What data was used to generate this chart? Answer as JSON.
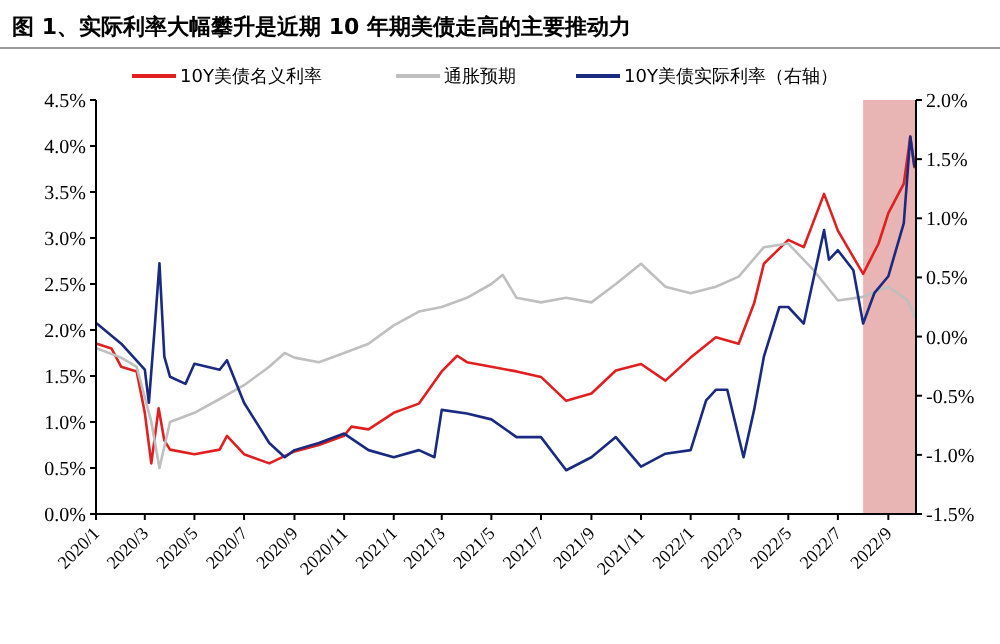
{
  "chart_data": {
    "type": "line",
    "title": "图 1、实际利率大幅攀升是近期 10 年期美债走高的主要推动力",
    "legend": "top",
    "grid": false,
    "line_style": "solid",
    "marker": "none",
    "xlim": [
      "2020-01-01",
      "2022-10-05"
    ],
    "xticks": [
      {
        "value": "2020-01",
        "label": "2020/1"
      },
      {
        "value": "2020-03",
        "label": "2020/3"
      },
      {
        "value": "2020-05",
        "label": "2020/5"
      },
      {
        "value": "2020-07",
        "label": "2020/7"
      },
      {
        "value": "2020-09",
        "label": "2020/9"
      },
      {
        "value": "2020-11",
        "label": "2020/11"
      },
      {
        "value": "2021-01",
        "label": "2021/1"
      },
      {
        "value": "2021-03",
        "label": "2021/3"
      },
      {
        "value": "2021-05",
        "label": "2021/5"
      },
      {
        "value": "2021-07",
        "label": "2021/7"
      },
      {
        "value": "2021-09",
        "label": "2021/9"
      },
      {
        "value": "2021-11",
        "label": "2021/11"
      },
      {
        "value": "2022-01",
        "label": "2022/1"
      },
      {
        "value": "2022-03",
        "label": "2022/3"
      },
      {
        "value": "2022-05",
        "label": "2022/5"
      },
      {
        "value": "2022-07",
        "label": "2022/7"
      },
      {
        "value": "2022-09",
        "label": "2022/9"
      }
    ],
    "ylim": [
      0,
      4.5
    ],
    "yticks": [
      {
        "value": 0,
        "label": "0.0%"
      },
      {
        "value": 0.5,
        "label": "0.5%"
      },
      {
        "value": 1,
        "label": "1.0%"
      },
      {
        "value": 1.5,
        "label": "1.5%"
      },
      {
        "value": 2,
        "label": "2.0%"
      },
      {
        "value": 2.5,
        "label": "2.5%"
      },
      {
        "value": 3,
        "label": "3.0%"
      },
      {
        "value": 3.5,
        "label": "3.5%"
      },
      {
        "value": 4,
        "label": "4.0%"
      },
      {
        "value": 4.5,
        "label": "4.5%"
      }
    ],
    "y2lim": [
      -1.5,
      2
    ],
    "y2ticks": [
      {
        "value": -1.5,
        "label": "-1.5%"
      },
      {
        "value": -1,
        "label": "-1.0%"
      },
      {
        "value": -0.5,
        "label": "-0.5%"
      },
      {
        "value": 0,
        "label": "0.0%"
      },
      {
        "value": 0.5,
        "label": "0.5%"
      },
      {
        "value": 1,
        "label": "1.0%"
      },
      {
        "value": 1.5,
        "label": "1.5%"
      },
      {
        "value": 2,
        "label": "2.0%"
      }
    ],
    "bands": [
      {
        "axis": "x",
        "from": "2022-08-01",
        "to": "2022-10-05",
        "color": "#e8b4b4"
      }
    ],
    "series": [
      {
        "name": "10Y美债名义利率",
        "color": "#e02020",
        "x": [
          "2020-01-02",
          "2020-01-20",
          "2020-02-01",
          "2020-02-20",
          "2020-03-01",
          "2020-03-09",
          "2020-03-18",
          "2020-03-25",
          "2020-04-01",
          "2020-05-01",
          "2020-06-01",
          "2020-06-10",
          "2020-07-01",
          "2020-08-01",
          "2020-09-01",
          "2020-10-01",
          "2020-11-01",
          "2020-11-10",
          "2020-12-01",
          "2021-01-01",
          "2021-02-01",
          "2021-03-01",
          "2021-03-20",
          "2021-04-01",
          "2021-05-01",
          "2021-06-01",
          "2021-07-01",
          "2021-08-01",
          "2021-09-01",
          "2021-10-01",
          "2021-11-01",
          "2021-12-01",
          "2022-01-01",
          "2022-02-01",
          "2022-03-01",
          "2022-03-20",
          "2022-04-01",
          "2022-05-01",
          "2022-05-20",
          "2022-06-14",
          "2022-07-01",
          "2022-08-01",
          "2022-08-20",
          "2022-09-01",
          "2022-09-20",
          "2022-09-28",
          "2022-10-03"
        ],
        "values": [
          1.85,
          1.8,
          1.6,
          1.55,
          1.1,
          0.55,
          1.15,
          0.8,
          0.7,
          0.65,
          0.7,
          0.85,
          0.65,
          0.55,
          0.68,
          0.75,
          0.85,
          0.95,
          0.92,
          1.1,
          1.2,
          1.55,
          1.72,
          1.65,
          1.6,
          1.55,
          1.49,
          1.23,
          1.31,
          1.56,
          1.63,
          1.45,
          1.7,
          1.92,
          1.85,
          2.29,
          2.72,
          2.98,
          2.9,
          3.48,
          3.08,
          2.61,
          2.94,
          3.27,
          3.59,
          4.1,
          3.77
        ]
      },
      {
        "name": "通胀预期",
        "color": "#bfbfbf",
        "x": [
          "2020-01-02",
          "2020-02-01",
          "2020-02-20",
          "2020-03-09",
          "2020-03-19",
          "2020-04-01",
          "2020-05-01",
          "2020-06-01",
          "2020-07-01",
          "2020-08-01",
          "2020-08-20",
          "2020-09-01",
          "2020-10-01",
          "2020-11-01",
          "2020-12-01",
          "2021-01-01",
          "2021-02-01",
          "2021-03-01",
          "2021-04-01",
          "2021-05-01",
          "2021-05-15",
          "2021-06-01",
          "2021-07-01",
          "2021-08-01",
          "2021-09-01",
          "2021-10-01",
          "2021-11-01",
          "2021-12-01",
          "2022-01-01",
          "2022-02-01",
          "2022-03-01",
          "2022-04-01",
          "2022-05-01",
          "2022-06-01",
          "2022-07-01",
          "2022-08-01",
          "2022-09-01",
          "2022-09-25",
          "2022-10-03"
        ],
        "values": [
          1.8,
          1.7,
          1.6,
          1.0,
          0.5,
          1.0,
          1.1,
          1.25,
          1.4,
          1.6,
          1.75,
          1.7,
          1.65,
          1.75,
          1.85,
          2.05,
          2.2,
          2.25,
          2.35,
          2.5,
          2.6,
          2.35,
          2.3,
          2.35,
          2.3,
          2.5,
          2.72,
          2.47,
          2.4,
          2.47,
          2.58,
          2.9,
          2.94,
          2.65,
          2.32,
          2.36,
          2.47,
          2.32,
          2.14
        ]
      },
      {
        "name": "10Y美债实际利率（右轴）",
        "color": "#1a2a80",
        "axis": "y2",
        "x": [
          "2020-01-02",
          "2020-02-01",
          "2020-03-01",
          "2020-03-06",
          "2020-03-13",
          "2020-03-19",
          "2020-03-25",
          "2020-04-01",
          "2020-04-20",
          "2020-05-01",
          "2020-06-01",
          "2020-06-10",
          "2020-07-01",
          "2020-08-01",
          "2020-08-20",
          "2020-09-01",
          "2020-10-01",
          "2020-11-01",
          "2020-12-01",
          "2021-01-01",
          "2021-02-01",
          "2021-02-20",
          "2021-03-01",
          "2021-04-01",
          "2021-05-01",
          "2021-06-01",
          "2021-07-01",
          "2021-08-01",
          "2021-09-01",
          "2021-10-01",
          "2021-11-01",
          "2021-12-01",
          "2022-01-01",
          "2022-01-20",
          "2022-02-01",
          "2022-02-15",
          "2022-03-07",
          "2022-03-20",
          "2022-04-01",
          "2022-04-20",
          "2022-05-01",
          "2022-05-20",
          "2022-06-14",
          "2022-06-20",
          "2022-07-01",
          "2022-07-20",
          "2022-08-01",
          "2022-08-15",
          "2022-09-01",
          "2022-09-20",
          "2022-09-28",
          "2022-10-03"
        ],
        "values": [
          0.11,
          -0.06,
          -0.28,
          -0.56,
          0.06,
          0.62,
          -0.17,
          -0.34,
          -0.4,
          -0.23,
          -0.28,
          -0.2,
          -0.56,
          -0.9,
          -1.02,
          -0.96,
          -0.9,
          -0.82,
          -0.96,
          -1.02,
          -0.96,
          -1.02,
          -0.62,
          -0.65,
          -0.7,
          -0.85,
          -0.85,
          -1.13,
          -1.02,
          -0.85,
          -1.1,
          -0.99,
          -0.96,
          -0.54,
          -0.45,
          -0.45,
          -1.02,
          -0.62,
          -0.17,
          0.25,
          0.25,
          0.11,
          0.9,
          0.65,
          0.73,
          0.56,
          0.11,
          0.37,
          0.51,
          0.96,
          1.69,
          1.44
        ]
      }
    ]
  }
}
